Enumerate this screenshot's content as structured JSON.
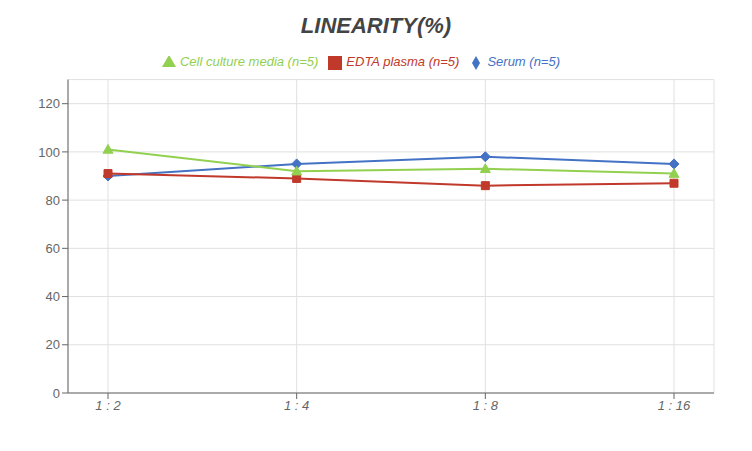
{
  "chart_data": {
    "type": "line",
    "title": "LINEARITY(%)",
    "categories": [
      "1 : 2",
      "1 : 4",
      "1 : 8",
      "1 : 16"
    ],
    "series": [
      {
        "name": "Serum (n=5)",
        "color": "#4472C4",
        "marker": "diamond",
        "values": [
          90,
          95,
          98,
          95
        ]
      },
      {
        "name": "EDTA plasma (n=5)",
        "color": "#C0392B",
        "marker": "square",
        "values": [
          91,
          89,
          86,
          87
        ]
      },
      {
        "name": "Cell culture media (n=5)",
        "color": "#92D050",
        "marker": "triangle",
        "values": [
          101,
          92,
          93,
          91
        ]
      }
    ],
    "ylim": [
      0,
      130
    ],
    "yticks": [
      0,
      20,
      40,
      60,
      80,
      100,
      120
    ],
    "grid": true,
    "legend": "top"
  }
}
